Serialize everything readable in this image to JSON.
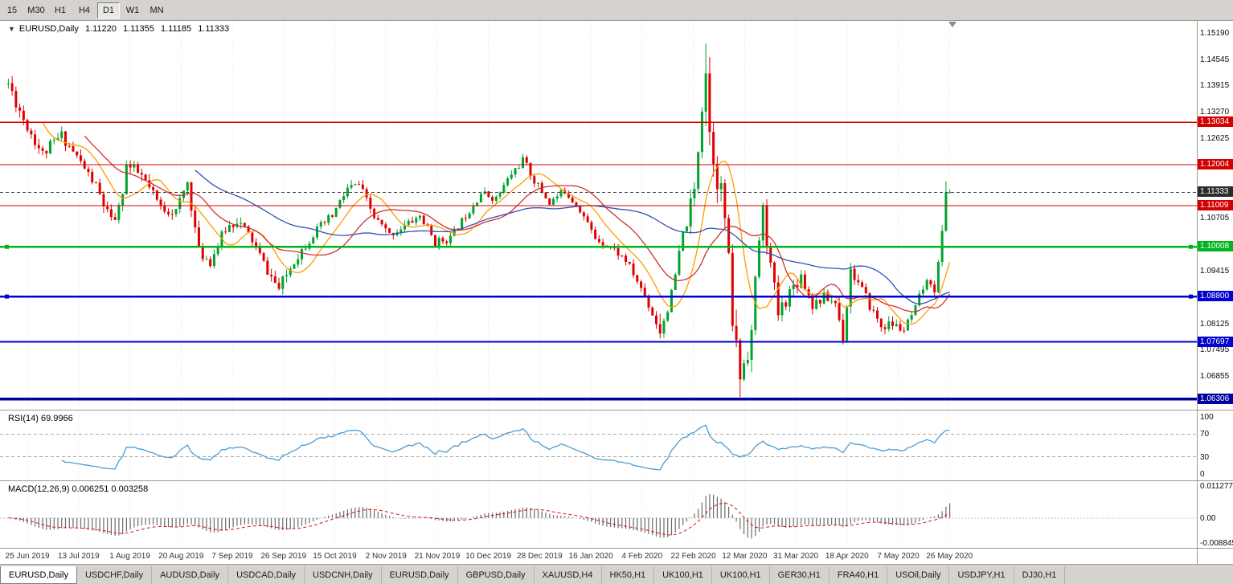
{
  "toolbar": {
    "timeframes": [
      "15",
      "M30",
      "H1",
      "H4",
      "D1",
      "W1",
      "MN"
    ],
    "active": "D1"
  },
  "chart_data": {
    "type": "candlestick",
    "symbol": "EURUSD",
    "period": "Daily",
    "header": {
      "symbol": "EURUSD,Daily",
      "open": "1.11220",
      "high": "1.11355",
      "low": "1.11185",
      "close": "1.11333"
    },
    "price_axis": {
      "min": 1.0605,
      "max": 1.155,
      "ticks": [
        "1.15190",
        "1.14545",
        "1.13915",
        "1.13270",
        "1.12625",
        "1.10705",
        "1.09415",
        "1.08125",
        "1.07495",
        "1.06855"
      ]
    },
    "levels": [
      {
        "value": 1.13034,
        "label": "1.13034",
        "color": "#d40000",
        "width": 1.3,
        "style": "solid",
        "type": "resistance"
      },
      {
        "value": 1.12004,
        "label": "1.12004",
        "color": "#d40000",
        "width": 1.3,
        "style": "solid",
        "type": "resistance"
      },
      {
        "value": 1.11333,
        "label": "1.11333",
        "color": "#404040",
        "width": 1,
        "style": "dotted",
        "type": "current-price"
      },
      {
        "value": 1.11009,
        "label": "1.11009",
        "color": "#d40000",
        "width": 1.3,
        "style": "solid",
        "type": "resistance"
      },
      {
        "value": 1.10008,
        "label": "1.10008",
        "color": "#00b41e",
        "width": 2.4,
        "style": "solid",
        "type": "support",
        "handles": true
      },
      {
        "value": 1.088,
        "label": "1.08800",
        "color": "#0000d0",
        "width": 2.4,
        "style": "solid",
        "type": "support",
        "handles": true
      },
      {
        "value": 1.07697,
        "label": "1.07697",
        "color": "#0000d0",
        "width": 2,
        "style": "solid",
        "type": "support"
      },
      {
        "value": 1.06306,
        "label": "1.06306",
        "color": "#0000a0",
        "width": 3.4,
        "style": "solid",
        "type": "support"
      }
    ],
    "x_labels": [
      "25 Jun 2019",
      "13 Jul 2019",
      "1 Aug 2019",
      "20 Aug 2019",
      "7 Sep 2019",
      "26 Sep 2019",
      "15 Oct 2019",
      "2 Nov 2019",
      "21 Nov 2019",
      "10 Dec 2019",
      "28 Dec 2019",
      "16 Jan 2020",
      "4 Feb 2020",
      "22 Feb 2020",
      "12 Mar 2020",
      "31 Mar 2020",
      "18 Apr 2020",
      "7 May 2020",
      "26 May 2020"
    ],
    "bars": {
      "count": 248,
      "seed": 11,
      "up_color": "#00a32e",
      "down_color": "#e00000",
      "close_anchors": [
        [
          0,
          1.1398,
          0.0042
        ],
        [
          4,
          1.1312,
          0.0038
        ],
        [
          9,
          1.1226,
          0.0034
        ],
        [
          14,
          1.1272,
          0.003
        ],
        [
          19,
          1.1206,
          0.003
        ],
        [
          23,
          1.1148,
          0.0028
        ],
        [
          27,
          1.1058,
          0.004
        ],
        [
          29,
          1.1088,
          0.0042
        ],
        [
          31,
          1.1198,
          0.004
        ],
        [
          35,
          1.1172,
          0.0032
        ],
        [
          40,
          1.1096,
          0.003
        ],
        [
          44,
          1.1086,
          0.003
        ],
        [
          47,
          1.1158,
          0.003
        ],
        [
          50,
          1.0988,
          0.0034
        ],
        [
          53,
          1.0966,
          0.003
        ],
        [
          57,
          1.1044,
          0.0032
        ],
        [
          60,
          1.1068,
          0.0034
        ],
        [
          64,
          1.1016,
          0.0028
        ],
        [
          68,
          1.0942,
          0.0028
        ],
        [
          71,
          1.0898,
          0.0032
        ],
        [
          75,
          1.0968,
          0.0028
        ],
        [
          80,
          1.1032,
          0.0026
        ],
        [
          85,
          1.1076,
          0.0026
        ],
        [
          89,
          1.1142,
          0.0026
        ],
        [
          92,
          1.1152,
          0.0024
        ],
        [
          96,
          1.1072,
          0.0024
        ],
        [
          100,
          1.103,
          0.0022
        ],
        [
          104,
          1.1052,
          0.0022
        ],
        [
          108,
          1.1076,
          0.0022
        ],
        [
          112,
          1.1012,
          0.0022
        ],
        [
          116,
          1.1022,
          0.0022
        ],
        [
          120,
          1.1078,
          0.0022
        ],
        [
          124,
          1.1132,
          0.0022
        ],
        [
          128,
          1.1118,
          0.002
        ],
        [
          132,
          1.1178,
          0.0022
        ],
        [
          135,
          1.1212,
          0.0024
        ],
        [
          138,
          1.1162,
          0.0022
        ],
        [
          142,
          1.1108,
          0.0022
        ],
        [
          146,
          1.1138,
          0.002
        ],
        [
          150,
          1.1092,
          0.002
        ],
        [
          154,
          1.1022,
          0.002
        ],
        [
          158,
          1.1002,
          0.002
        ],
        [
          162,
          1.0968,
          0.0022
        ],
        [
          166,
          1.09,
          0.0022
        ],
        [
          169,
          1.0838,
          0.0024
        ],
        [
          171,
          1.0795,
          0.0026
        ],
        [
          174,
          1.0882,
          0.0034
        ],
        [
          177,
          1.1028,
          0.0044
        ],
        [
          180,
          1.1135,
          0.0052
        ],
        [
          182,
          1.1355,
          0.0075
        ],
        [
          183,
          1.1438,
          0.008
        ],
        [
          184,
          1.1282,
          0.009
        ],
        [
          186,
          1.1182,
          0.0095
        ],
        [
          188,
          1.1075,
          0.009
        ],
        [
          190,
          1.0822,
          0.0085
        ],
        [
          192,
          1.0688,
          0.0078
        ],
        [
          193,
          1.0722,
          0.0074
        ],
        [
          195,
          1.0792,
          0.007
        ],
        [
          197,
          1.1022,
          0.0066
        ],
        [
          198,
          1.1086,
          0.0058
        ],
        [
          200,
          1.0952,
          0.005
        ],
        [
          202,
          1.0838,
          0.0046
        ],
        [
          205,
          1.0892,
          0.004
        ],
        [
          208,
          1.0932,
          0.0036
        ],
        [
          211,
          1.0862,
          0.0034
        ],
        [
          214,
          1.0878,
          0.003
        ],
        [
          217,
          1.0866,
          0.003
        ],
        [
          219,
          1.0782,
          0.0032
        ],
        [
          221,
          1.0946,
          0.0036
        ],
        [
          223,
          1.0912,
          0.003
        ],
        [
          226,
          1.0858,
          0.0028
        ],
        [
          229,
          1.0808,
          0.0028
        ],
        [
          232,
          1.0812,
          0.0026
        ],
        [
          235,
          1.0798,
          0.0026
        ],
        [
          238,
          1.0848,
          0.0026
        ],
        [
          240,
          1.0902,
          0.0026
        ],
        [
          242,
          1.0918,
          0.0024
        ],
        [
          243,
          1.0898,
          0.0024
        ],
        [
          244,
          1.0958,
          0.0026
        ],
        [
          245,
          1.1035,
          0.0028
        ],
        [
          246,
          1.1138,
          0.0028
        ],
        [
          247,
          1.1133,
          0.0022
        ]
      ],
      "extremes": [
        [
          183,
          1.1495,
          1.133
        ],
        [
          192,
          1.072,
          1.0636
        ],
        [
          171,
          1.0838,
          1.0778
        ],
        [
          246,
          1.116,
          1.1085
        ]
      ]
    },
    "moving_averages": [
      {
        "period": 10,
        "color": "#ff9c00"
      },
      {
        "period": 21,
        "color": "#d43030"
      },
      {
        "period": 50,
        "color": "#3050b4"
      }
    ],
    "indicators": {
      "rsi": {
        "header": "RSI(14) 69.9966",
        "period": 14,
        "value": 69.9966,
        "scale_labels": [
          "100",
          "70",
          "30",
          "0"
        ],
        "guide_levels": [
          70,
          30
        ],
        "color": "#4a9cd4"
      },
      "macd": {
        "header": "MACD(12,26,9) 0.006251 0.003258",
        "fast": 12,
        "slow": 26,
        "smoothing": 9,
        "value": 0.006251,
        "signal_value": 0.003258,
        "scale_labels": [
          "0.011277",
          "0.00",
          "-0.008845"
        ],
        "max": 0.011277,
        "min": -0.008845,
        "histogram_color": "#6b6b6b",
        "signal_color": "#e01010"
      }
    }
  },
  "tabs": {
    "items": [
      "EURUSD,Daily",
      "USDCHF,Daily",
      "AUDUSD,Daily",
      "USDCAD,Daily",
      "USDCNH,Daily",
      "EURUSD,Daily",
      "GBPUSD,Daily",
      "XAUUSD,H4",
      "HK50,H1",
      "UK100,H1",
      "UK100,H1",
      "GER30,H1",
      "FRA40,H1",
      "USOil,Daily",
      "USDJPY,H1",
      "DJ30,H1"
    ],
    "active_index": 0
  }
}
